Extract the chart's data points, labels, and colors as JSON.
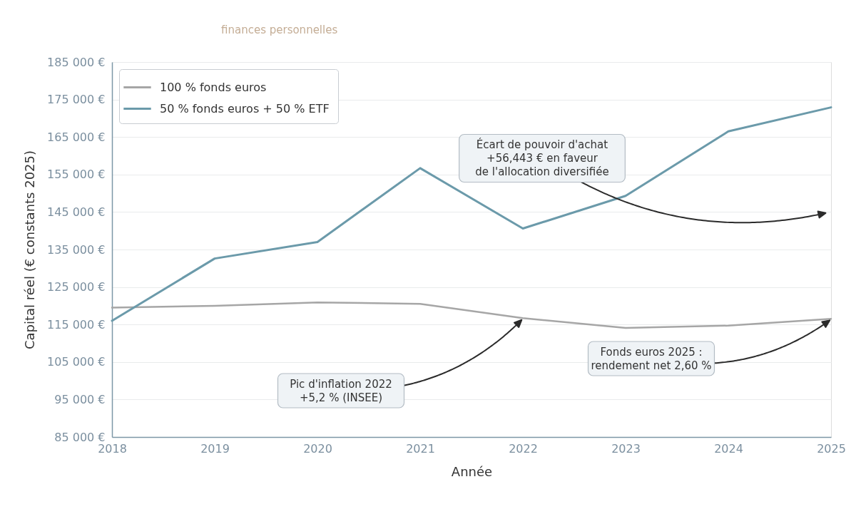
{
  "chart_data": {
    "type": "line",
    "subtitle": "finances personnelles",
    "xlabel": "Année",
    "ylabel": "Capital réel (€ constants 2025)",
    "x": [
      2018,
      2019,
      2020,
      2021,
      2022,
      2023,
      2024,
      2025
    ],
    "series": [
      {
        "name": "100 % fonds euros",
        "color": "#a6a6a6",
        "values": [
          119500,
          120000,
          120900,
          120500,
          116700,
          114100,
          114700,
          116500
        ]
      },
      {
        "name": "50 % fonds euros + 50 % ETF",
        "color": "#6b9aaa",
        "values": [
          116000,
          132600,
          137000,
          156700,
          140600,
          149300,
          166500,
          172900
        ]
      }
    ],
    "xlim": [
      2018,
      2025
    ],
    "xticks": [
      2018,
      2019,
      2020,
      2021,
      2022,
      2023,
      2024,
      2025
    ],
    "ylim": [
      85000,
      185000
    ],
    "yticks": [
      {
        "value": 85000,
        "label": "85 000 €"
      },
      {
        "value": 95000,
        "label": "95 000 €"
      },
      {
        "value": 105000,
        "label": "105 000 €"
      },
      {
        "value": 115000,
        "label": "115 000 €"
      },
      {
        "value": 125000,
        "label": "125 000 €"
      },
      {
        "value": 135000,
        "label": "135 000 €"
      },
      {
        "value": 145000,
        "label": "145 000 €"
      },
      {
        "value": 155000,
        "label": "155 000 €"
      },
      {
        "value": 165000,
        "label": "165 000 €"
      },
      {
        "value": 175000,
        "label": "175 000 €"
      },
      {
        "value": 185000,
        "label": "185 000 €"
      }
    ],
    "grid": "y",
    "legend": "top left",
    "marker": "none",
    "line_style": "solid",
    "annotations": [
      "Écart de pouvoir d'achat\n+56,443 € en faveur\nde l'allocation diversifiée",
      "Pic d'inflation 2022\n+5,2 % (INSEE)",
      "Fonds euros 2025 :\nrendement net 2,60 %"
    ]
  }
}
